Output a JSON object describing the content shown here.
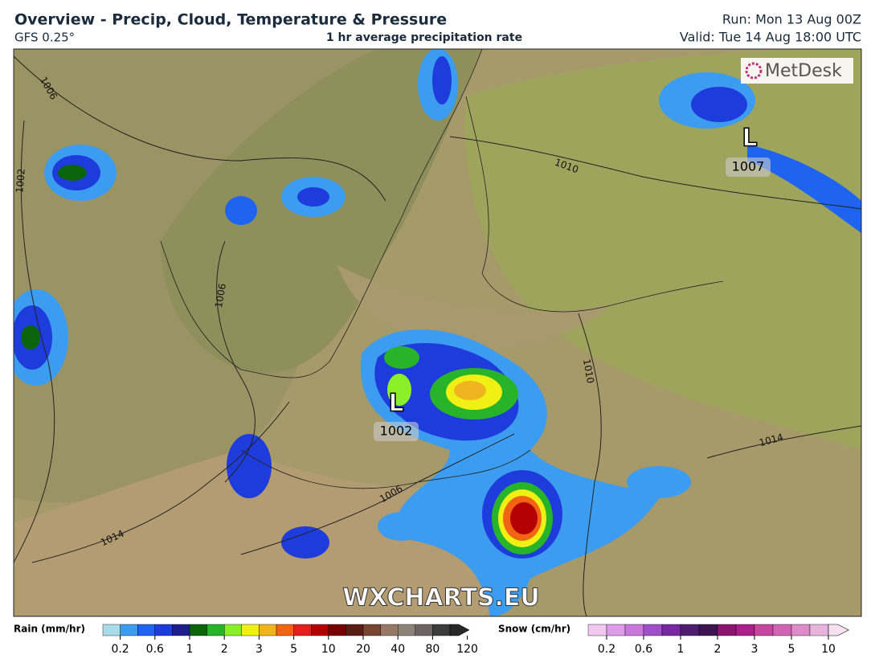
{
  "header": {
    "title": "Overview - Precip, Cloud, Temperature & Pressure",
    "model": "GFS 0.25°",
    "product": "1 hr average precipitation rate",
    "run": "Run: Mon 13 Aug 00Z",
    "valid": "Valid: Tue 14 Aug 18:00 UTC"
  },
  "map": {
    "logo": "MetDesk",
    "watermark": "WXCHARTS.EU",
    "lows": [
      {
        "symbol": "L",
        "pressure": 1002
      },
      {
        "symbol": "L",
        "pressure": 1007
      }
    ],
    "isobar_labels": [
      1006,
      1002,
      1006,
      1010,
      1010,
      1014,
      1006,
      1014
    ]
  },
  "legend": {
    "rain": {
      "label": "Rain (mm/hr)",
      "colors": [
        "#a8dce8",
        "#3c9cf0",
        "#1e64f0",
        "#1e3cdc",
        "#1e1e8c",
        "#0a640a",
        "#28b428",
        "#8cf028",
        "#f0f014",
        "#f0b41e",
        "#f06414",
        "#e61e1e",
        "#b40000",
        "#780000",
        "#5a1e14",
        "#784632",
        "#967864",
        "#8c8278",
        "#6e6464",
        "#3c3c3c",
        "#282828"
      ],
      "ticks": [
        0.2,
        0.6,
        1,
        2,
        3,
        5,
        10,
        20,
        40,
        80,
        120
      ]
    },
    "snow": {
      "label": "Snow (cm/hr)",
      "colors": [
        "#f0c8f0",
        "#dc9ce6",
        "#c878dc",
        "#a050c8",
        "#7828a0",
        "#501e6e",
        "#3c1450",
        "#8c146e",
        "#aa1e8c",
        "#c8469e",
        "#d264b4",
        "#dc8cc8",
        "#e6b4dc",
        "#f5e1f0"
      ],
      "ticks": [
        0.2,
        0.6,
        1,
        2,
        3,
        5,
        10
      ]
    }
  }
}
